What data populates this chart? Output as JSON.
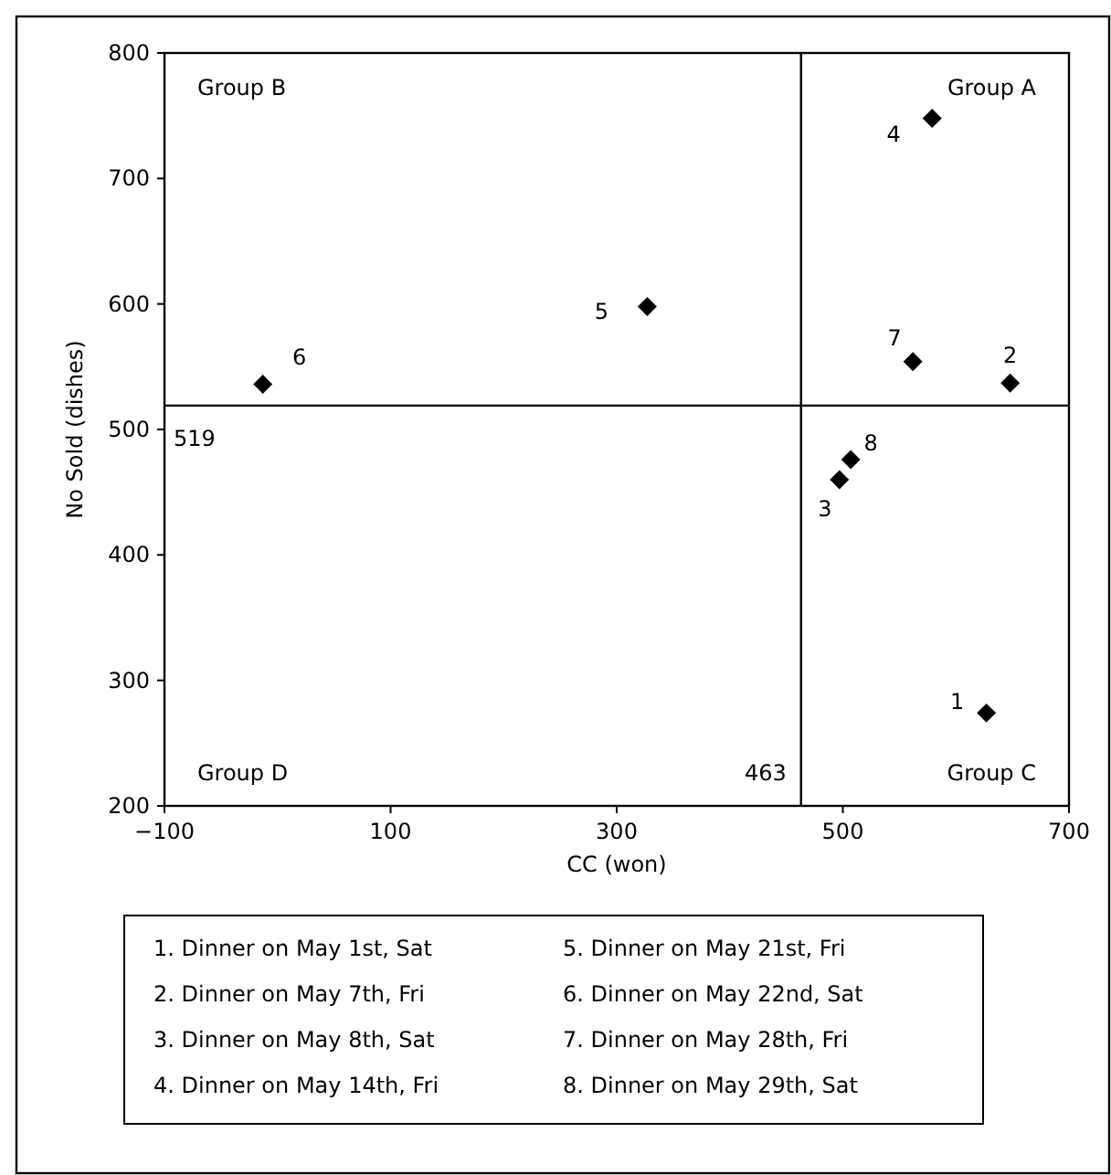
{
  "chart_data": {
    "type": "scatter",
    "xlabel": "CC (won)",
    "ylabel": "No Sold (dishes)",
    "series": [
      {
        "color": "#000000",
        "x": [
          627,
          648,
          497,
          579,
          327,
          -13,
          562,
          507
        ],
        "values": [
          274,
          537,
          460,
          748,
          598,
          536,
          554,
          476
        ]
      }
    ],
    "marker": "diamond",
    "grid": false,
    "xlim": [
      -100,
      700
    ],
    "xticks": [
      {
        "value": -100,
        "label": "−100"
      },
      100,
      300,
      500,
      700
    ],
    "ylim": [
      200,
      800
    ],
    "yticks": [
      200,
      300,
      400,
      500,
      600,
      700,
      800
    ],
    "ref_lines": [
      {
        "axis": "x",
        "value": 463,
        "label": "463",
        "color": "#000000"
      },
      {
        "axis": "y",
        "value": 519,
        "label": "519",
        "color": "#000000"
      }
    ],
    "annotations": [
      "Group B",
      "Group A",
      "Group D",
      "Group C",
      {
        "text": "1",
        "x": 627,
        "y": 274
      },
      {
        "text": "2",
        "x": 648,
        "y": 537
      },
      {
        "text": "3",
        "x": 497,
        "y": 460
      },
      {
        "text": "4",
        "x": 579,
        "y": 748
      },
      {
        "text": "5",
        "x": 327,
        "y": 598
      },
      {
        "text": "6",
        "x": -13,
        "y": 536
      },
      {
        "text": "7",
        "x": 562,
        "y": 554
      },
      {
        "text": "8",
        "x": 507,
        "y": 476
      },
      "1. Dinner on May 1st, Sat",
      "2. Dinner on May 7th, Fri",
      "3. Dinner on May 8th, Sat",
      "4. Dinner on May 14th, Fri",
      "5. Dinner on May 21st, Fri",
      "6. Dinner on May 22nd, Sat",
      "7. Dinner on May 28th, Fri",
      "8. Dinner on May 29th, Sat"
    ]
  }
}
